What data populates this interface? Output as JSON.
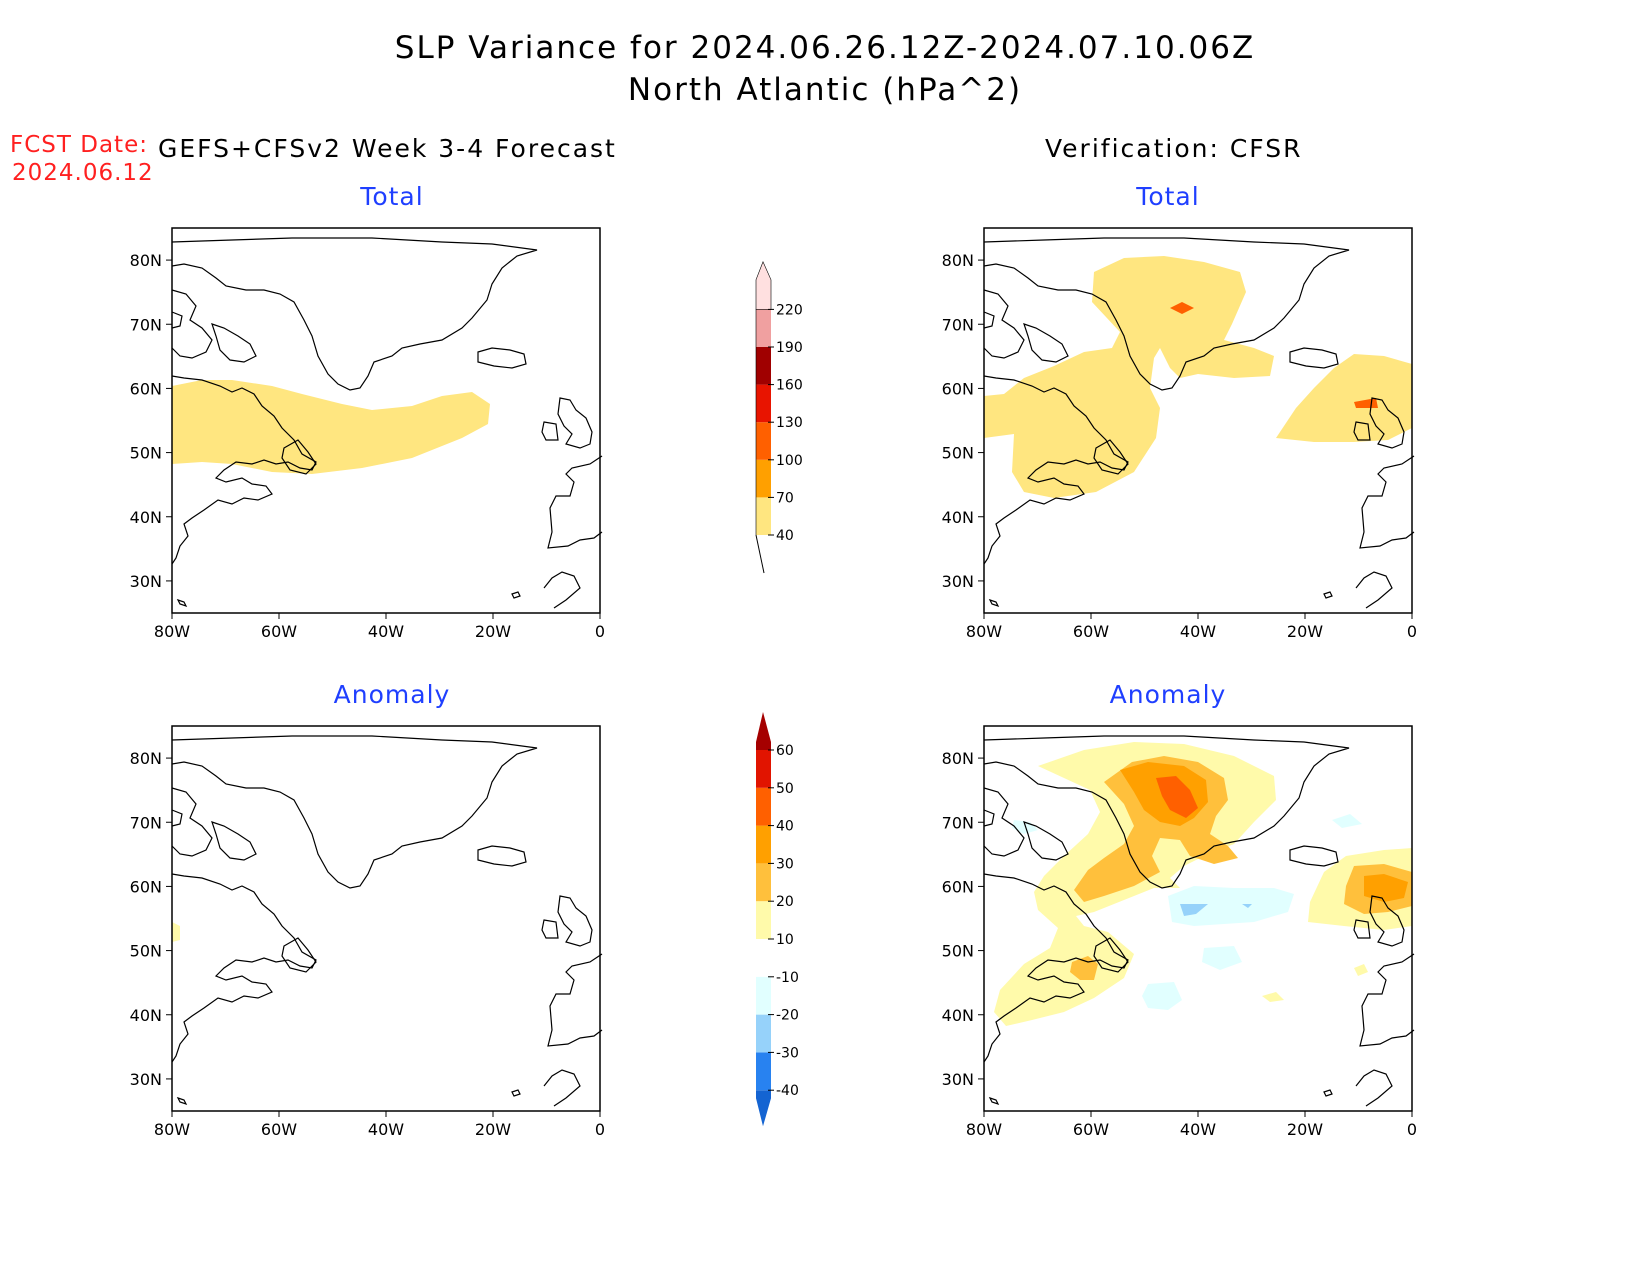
{
  "title_line1": "SLP Variance for 2024.06.26.12Z-2024.07.10.06Z",
  "title_line2": "North Atlantic (hPa^2)",
  "fcst_label": "FCST Date:",
  "fcst_date": "2024.06.12",
  "left_header": "GEFS+CFSv2 Week 3-4 Forecast",
  "right_header": "Verification: CFSR",
  "panels": [
    {
      "id": "forecast-total",
      "subtitle": "Total"
    },
    {
      "id": "verification-total",
      "subtitle": "Total"
    },
    {
      "id": "forecast-anomaly",
      "subtitle": "Anomaly"
    },
    {
      "id": "verification-anomaly",
      "subtitle": "Anomaly"
    }
  ],
  "axes": {
    "lat_ticks": [
      "80N",
      "70N",
      "60N",
      "50N",
      "40N",
      "30N"
    ],
    "lon_ticks": [
      "80W",
      "60W",
      "40W",
      "20W",
      "0"
    ],
    "lat_range": [
      25,
      85
    ],
    "lon_range": [
      -80,
      0
    ]
  },
  "total_colorbar": {
    "levels": [
      "40",
      "70",
      "100",
      "130",
      "160",
      "190",
      "220"
    ],
    "colors": [
      "#ffe680",
      "#ffa000",
      "#ff6000",
      "#e81400",
      "#a00000",
      "#f0a0a0",
      "#ffe0e0"
    ]
  },
  "anomaly_colorbar": {
    "levels": [
      "-40",
      "-30",
      "-20",
      "-10",
      "10",
      "20",
      "30",
      "40",
      "50",
      "60"
    ],
    "colors": [
      "#1464d2",
      "#2882f0",
      "#96d2fa",
      "#e1ffff",
      "#ffffff",
      "#fffaaa",
      "#ffc03c",
      "#ffa000",
      "#ff6000",
      "#e11400",
      "#a50000"
    ]
  }
}
